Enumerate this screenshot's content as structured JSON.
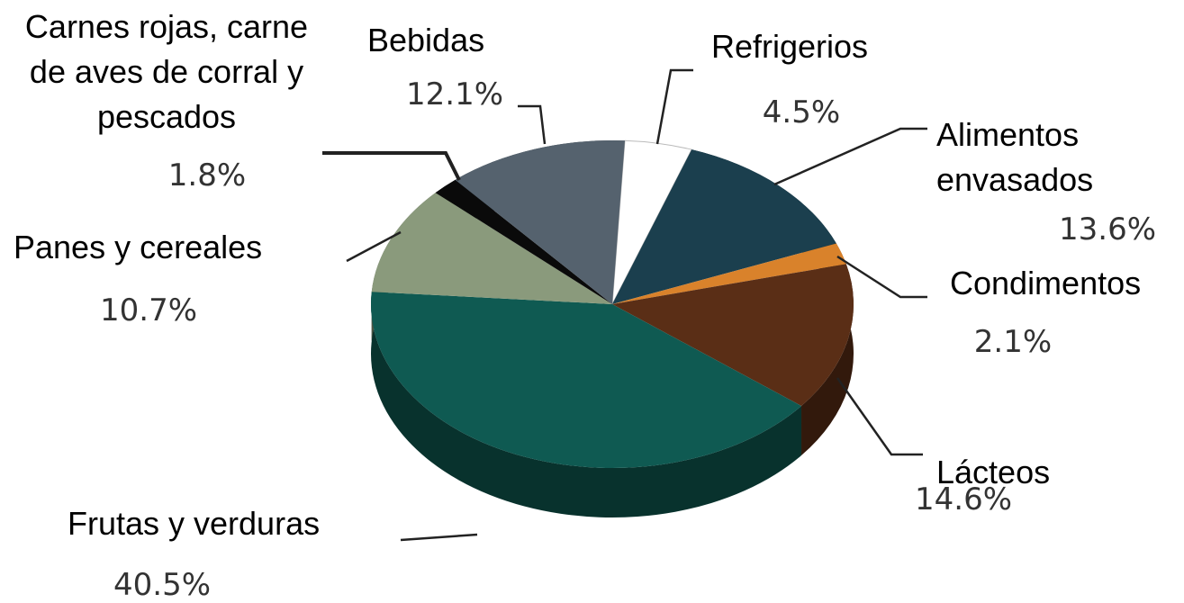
{
  "chart_data": {
    "type": "pie",
    "categories": [
      "Refrigerios",
      "Alimentos envasados",
      "Condimentos",
      "Lácteos",
      "Frutas y verduras",
      "Panes y cereales",
      "Carnes rojas, carne de aves de corral y pescados",
      "Bebidas"
    ],
    "values": [
      4.5,
      13.6,
      2.1,
      14.6,
      40.5,
      10.7,
      1.8,
      12.1
    ],
    "value_labels": [
      "4.5%",
      "13.6%",
      "2.1%",
      "14.6%",
      "40.5%",
      "10.7%",
      "1.8%",
      "12.1%"
    ],
    "colors": [
      "#ffffff",
      "#1b3f4e",
      "#d9822b",
      "#5a2e16",
      "#0f5a52",
      "#8a9a7c",
      "#0a0a0a",
      "#55626e"
    ]
  }
}
